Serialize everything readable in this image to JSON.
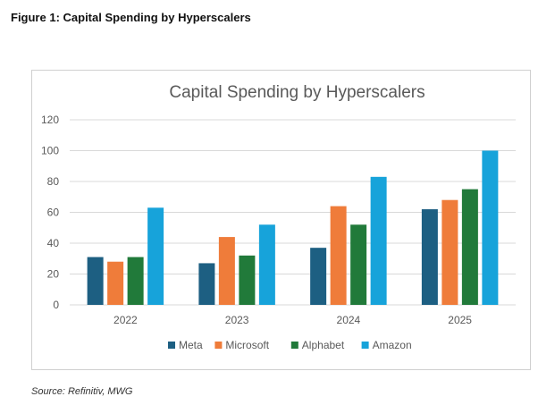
{
  "figure_title": "Figure 1: Capital Spending by Hyperscalers",
  "source": "Source: Refinitiv, MWG",
  "colors": {
    "Meta": "#1d5f82",
    "Microsoft": "#ef7c3a",
    "Alphabet": "#217a3a",
    "Amazon": "#17a3da",
    "grid": "#d9d9d9",
    "text": "#595959"
  },
  "chart_data": {
    "type": "bar",
    "title": "Capital Spending by Hyperscalers",
    "categories": [
      "2022",
      "2023",
      "2024",
      "2025"
    ],
    "series": [
      {
        "name": "Meta",
        "values": [
          31,
          27,
          37,
          62
        ]
      },
      {
        "name": "Microsoft",
        "values": [
          28,
          44,
          64,
          68
        ]
      },
      {
        "name": "Alphabet",
        "values": [
          31,
          32,
          52,
          75
        ]
      },
      {
        "name": "Amazon",
        "values": [
          63,
          52,
          83,
          100
        ]
      }
    ],
    "ylim": [
      0,
      120
    ],
    "yticks": [
      0,
      20,
      40,
      60,
      80,
      100,
      120
    ],
    "grid": true,
    "legend": "bottom"
  }
}
